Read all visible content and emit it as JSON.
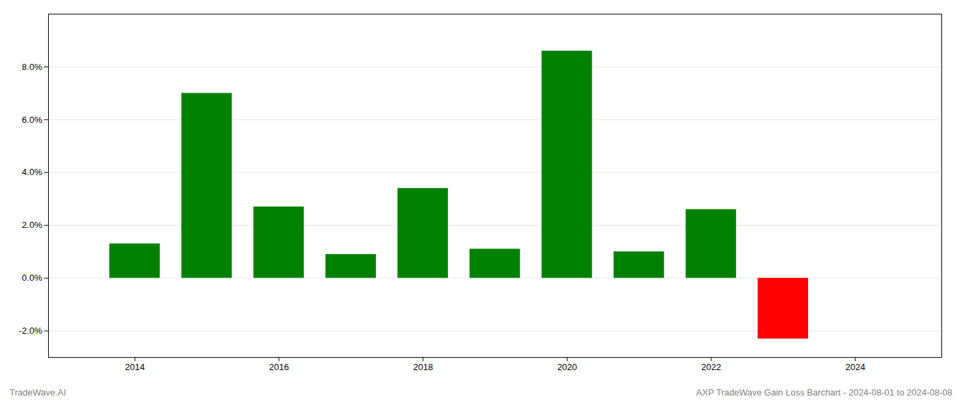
{
  "chart_data": {
    "type": "bar",
    "x": [
      2014,
      2015,
      2016,
      2017,
      2018,
      2019,
      2020,
      2021,
      2022,
      2023
    ],
    "values": [
      0.013,
      0.07,
      0.027,
      0.009,
      0.034,
      0.011,
      0.086,
      0.01,
      0.026,
      -0.023
    ],
    "colors": [
      "#008000",
      "#008000",
      "#008000",
      "#008000",
      "#008000",
      "#008000",
      "#008000",
      "#008000",
      "#008000",
      "#ff0000"
    ],
    "xlim": [
      2012.8,
      2025.2
    ],
    "xticks": [
      2014,
      2016,
      2018,
      2020,
      2022,
      2024
    ],
    "ylim": [
      -0.03,
      0.1
    ],
    "yticks": [
      {
        "value": -0.02,
        "label": "-2.0%"
      },
      {
        "value": 0.0,
        "label": "0.0%"
      },
      {
        "value": 0.02,
        "label": "2.0%"
      },
      {
        "value": 0.04,
        "label": "4.0%"
      },
      {
        "value": 0.06,
        "label": "6.0%"
      },
      {
        "value": 0.08,
        "label": "8.0%"
      }
    ],
    "grid": true,
    "annotations": [
      "TradeWave.AI",
      "AXP TradeWave Gain Loss Barchart - 2024-08-01 to 2024-08-08"
    ]
  }
}
